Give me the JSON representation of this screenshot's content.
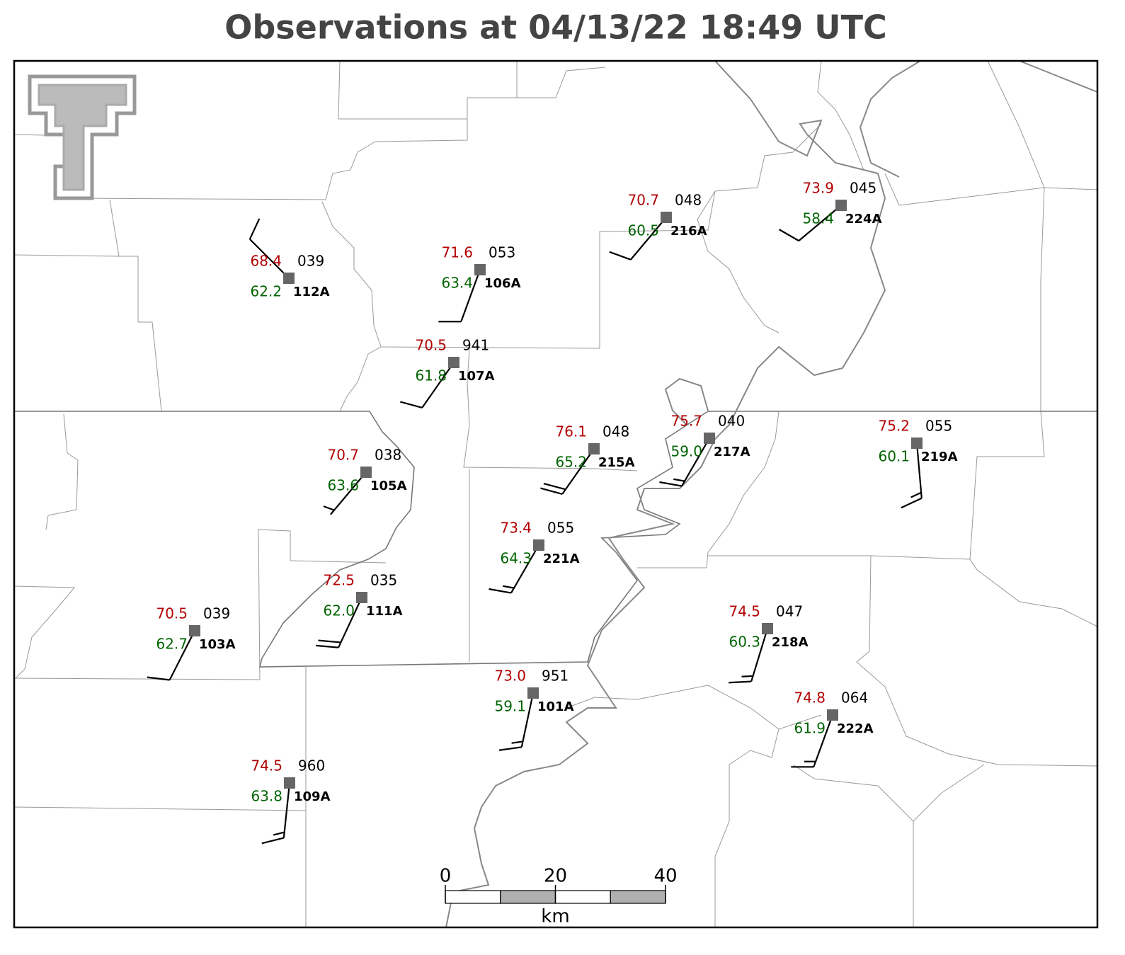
{
  "title": "Observations at 04/13/22 18:49 UTC",
  "stations": [
    {
      "id": "112A",
      "temperature": "68.4",
      "dewpoint": "62.2",
      "pressure": "039",
      "wind_direction": 315,
      "wind_speed": 10
    },
    {
      "id": "106A",
      "temperature": "71.6",
      "dewpoint": "63.4",
      "pressure": "053",
      "wind_direction": 200,
      "wind_speed": 10
    },
    {
      "id": "107A",
      "temperature": "70.5",
      "dewpoint": "61.8",
      "pressure": "941",
      "wind_direction": 215,
      "wind_speed": 10
    },
    {
      "id": "216A",
      "temperature": "70.7",
      "dewpoint": "60.5",
      "pressure": "048",
      "wind_direction": 220,
      "wind_speed": 10
    },
    {
      "id": "224A",
      "temperature": "73.9",
      "dewpoint": "58.4",
      "pressure": "045",
      "wind_direction": 230,
      "wind_speed": 10
    },
    {
      "id": "105A",
      "temperature": "70.7",
      "dewpoint": "63.6",
      "pressure": "038",
      "wind_direction": 220,
      "wind_speed": 5
    },
    {
      "id": "215A",
      "temperature": "76.1",
      "dewpoint": "65.2",
      "pressure": "048",
      "wind_direction": 215,
      "wind_speed": 20
    },
    {
      "id": "217A",
      "temperature": "75.7",
      "dewpoint": "59.0",
      "pressure": "040",
      "wind_direction": 210,
      "wind_speed": 15
    },
    {
      "id": "219A",
      "temperature": "75.2",
      "dewpoint": "60.1",
      "pressure": "055",
      "wind_direction": 175,
      "wind_speed": 15
    },
    {
      "id": "221A",
      "temperature": "73.4",
      "dewpoint": "64.3",
      "pressure": "055",
      "wind_direction": 210,
      "wind_speed": 15
    },
    {
      "id": "111A",
      "temperature": "72.5",
      "dewpoint": "62.0",
      "pressure": "035",
      "wind_direction": 205,
      "wind_speed": 20
    },
    {
      "id": "103A",
      "temperature": "70.5",
      "dewpoint": "62.7",
      "pressure": "039",
      "wind_direction": 207,
      "wind_speed": 10
    },
    {
      "id": "218A",
      "temperature": "74.5",
      "dewpoint": "60.3",
      "pressure": "047",
      "wind_direction": 197,
      "wind_speed": 15
    },
    {
      "id": "101A",
      "temperature": "73.0",
      "dewpoint": "59.1",
      "pressure": "951",
      "wind_direction": 192,
      "wind_speed": 15
    },
    {
      "id": "222A",
      "temperature": "74.8",
      "dewpoint": "61.9",
      "pressure": "064",
      "wind_direction": 200,
      "wind_speed": 15
    },
    {
      "id": "109A",
      "temperature": "74.5",
      "dewpoint": "63.8",
      "pressure": "960",
      "wind_direction": 186,
      "wind_speed": 15
    }
  ],
  "scale_bar": {
    "ticks": [
      0,
      20,
      40
    ],
    "unit": "km"
  }
}
